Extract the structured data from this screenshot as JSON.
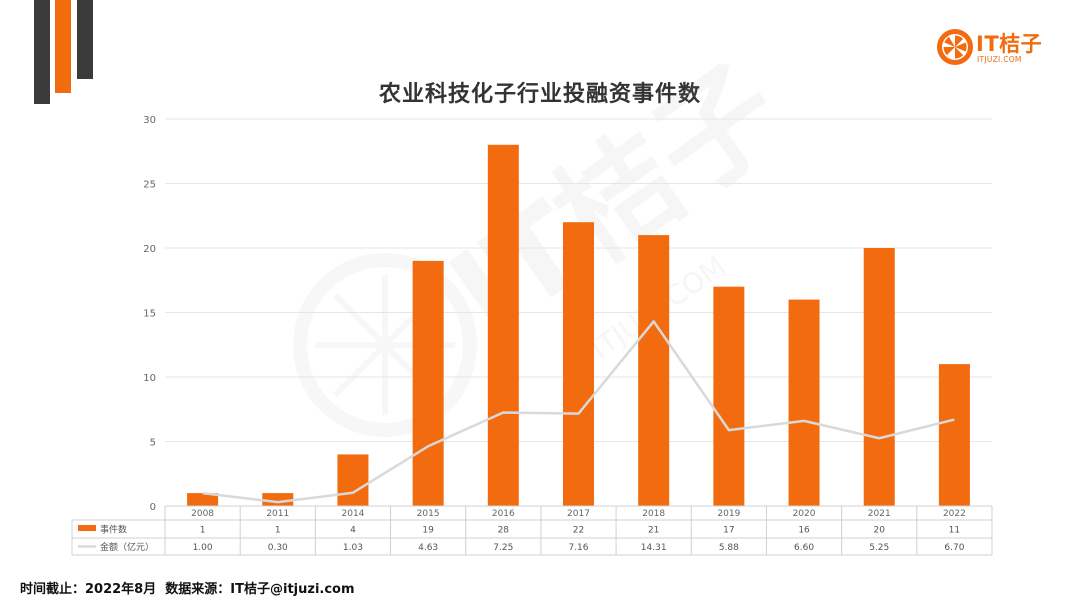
{
  "colors": {
    "accent": "#f26b0f",
    "dark": "#3b3b3b",
    "line": "#d9d9d9",
    "grid": "#e6e6e6"
  },
  "logo": {
    "text": "IT桔子",
    "sub": "ITJUZI.COM",
    "icon": "orange-slice-icon"
  },
  "watermark": {
    "text": "IT桔子",
    "sub": "ITJUZI.COM"
  },
  "footer": {
    "date_label": "时间截止：2022年8月",
    "source_label": "数据来源：IT桔子@itjuzi.com"
  },
  "chart_data": {
    "type": "bar",
    "title": "农业科技化子行业投融资事件数",
    "categories": [
      "2008",
      "2011",
      "2014",
      "2015",
      "2016",
      "2017",
      "2018",
      "2019",
      "2020",
      "2021",
      "2022"
    ],
    "ylim": [
      0,
      30
    ],
    "yticks": [
      0,
      5,
      10,
      15,
      20,
      25,
      30
    ],
    "grid": true,
    "legend": "table-left",
    "series": [
      {
        "name": "事件数",
        "type": "bar",
        "color": "#f26b0f",
        "values": [
          1,
          1,
          4,
          19,
          28,
          22,
          21,
          17,
          16,
          20,
          11
        ],
        "labels": [
          "1",
          "1",
          "4",
          "19",
          "28",
          "22",
          "21",
          "17",
          "16",
          "20",
          "11"
        ]
      },
      {
        "name": "金额（亿元）",
        "type": "line",
        "color": "#d9d9d9",
        "values": [
          1.0,
          0.3,
          1.03,
          4.63,
          7.25,
          7.16,
          14.31,
          5.88,
          6.6,
          5.25,
          6.7
        ],
        "labels": [
          "1.00",
          "0.30",
          "1.03",
          "4.63",
          "7.25",
          "7.16",
          "14.31",
          "5.88",
          "6.60",
          "5.25",
          "6.70"
        ]
      }
    ]
  }
}
